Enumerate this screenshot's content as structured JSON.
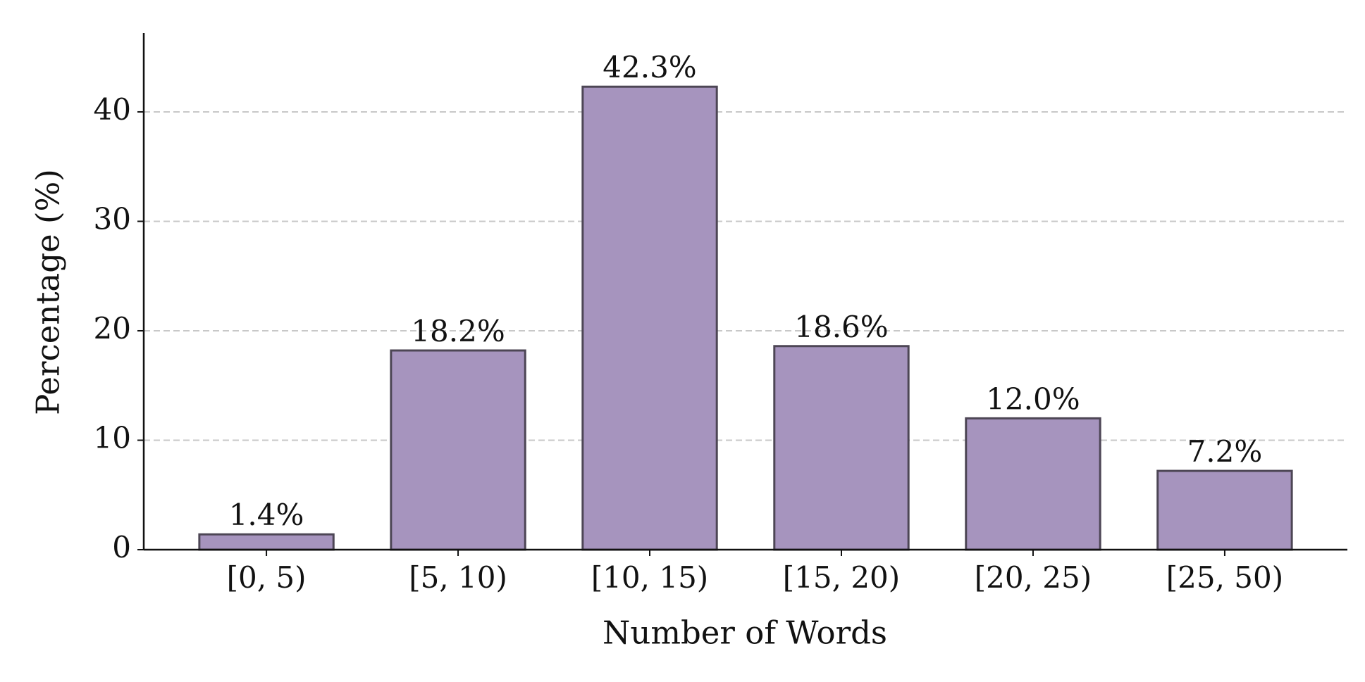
{
  "chart_data": {
    "type": "bar",
    "x_label": "Number of Words",
    "y_label": "Percentage (%)",
    "categories": [
      "[0, 5)",
      "[5, 10)",
      "[10, 15)",
      "[15, 20)",
      "[20, 25)",
      "[25, 50)"
    ],
    "values": [
      1.4,
      18.2,
      42.3,
      18.6,
      12.0,
      7.2
    ],
    "value_labels": [
      "1.4%",
      "18.2%",
      "42.3%",
      "18.6%",
      "12.0%",
      "7.2%"
    ],
    "color": "#a694be",
    "edge_color": "#4d4655",
    "ylim": [
      0,
      47.2
    ],
    "yticks": [
      0,
      10,
      20,
      30,
      40
    ],
    "grid": true
  }
}
